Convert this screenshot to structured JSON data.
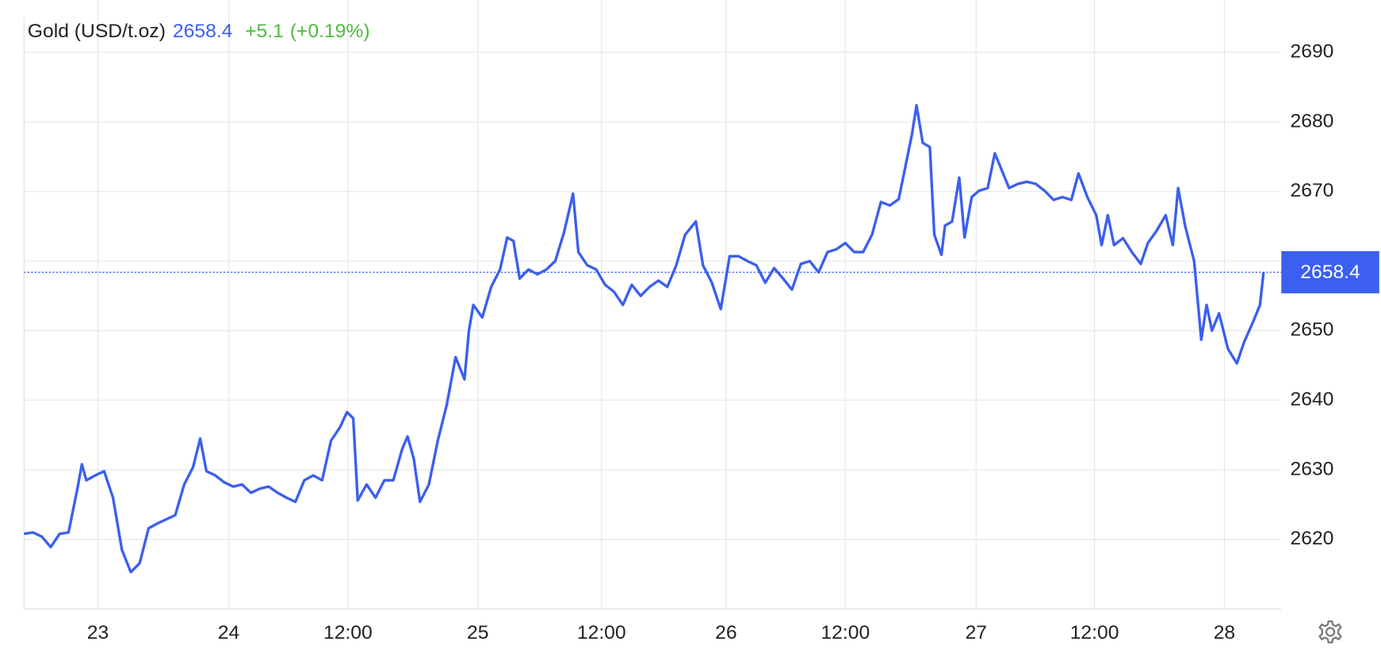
{
  "chart_data": {
    "type": "line",
    "title": "Gold (USD/t.oz)",
    "price": 2658.4,
    "change": {
      "value": 5.1,
      "label": "+5.1"
    },
    "change_pct": {
      "value": 0.19,
      "label": "(+0.19%)"
    },
    "color": "#3b5ff0",
    "grid": true,
    "x": [
      0,
      1,
      2,
      3,
      4,
      5,
      6,
      6.5,
      7,
      8,
      9,
      10,
      11,
      12,
      13,
      14,
      15,
      16,
      17,
      18,
      19,
      19.8,
      20.5,
      21.5,
      22.5,
      23.5,
      24.5,
      25.5,
      26.5,
      27.5,
      28.5,
      29.5,
      30.5,
      31.5,
      32.5,
      33.5,
      34.5,
      35.5,
      36.3,
      37,
      37.5,
      38.5,
      39.5,
      40.5,
      41.5,
      42.5,
      43.1,
      43.8,
      44.5,
      45.5,
      46.5,
      47.5,
      48.5,
      49.5,
      50,
      50.5,
      51.5,
      52.5,
      53.5,
      54.3,
      55,
      55.7,
      56.7,
      57.7,
      58.7,
      59.7,
      60.7,
      61.7,
      62.3,
      63.3,
      64.3,
      65.3,
      66.3,
      67.3,
      68.3,
      69.3,
      70.3,
      71.3,
      72.3,
      73.3,
      74.3,
      75.5,
      76.3,
      77.3,
      78.3,
      79.3,
      80.3,
      81.3,
      82.3,
      83.3,
      84.3,
      85.3,
      86.3,
      87.3,
      88.3,
      89.3,
      90.3,
      91.3,
      92.3,
      93.3,
      94.3,
      95.3,
      96.3,
      97.3,
      98.3,
      99.1,
      99.8,
      100.3,
      101,
      101.8,
      102.3,
      103.1,
      103.5,
      104.3,
      105.1,
      105.7,
      106.5,
      107.3,
      108.3,
      109.1,
      109.9,
      110.7,
      111.7,
      112.7,
      113.7,
      114.7,
      115.7,
      116.7,
      117.7,
      118.5,
      119.5,
      120.5,
      121.1,
      121.8,
      122.5,
      123.5,
      124.5,
      125.5,
      126.3,
      127.3,
      128.3,
      129.1,
      129.7,
      130.5,
      131.5,
      132.3,
      132.9,
      133.5,
      134.3,
      135.3,
      136.3,
      137.1,
      138.1,
      138.9,
      139.3
    ],
    "values": [
      2620.8,
      2621,
      2620.4,
      2618.9,
      2620.8,
      2621,
      2627.3,
      2630.8,
      2628.5,
      2629.2,
      2629.8,
      2626,
      2618.5,
      2615.3,
      2616.6,
      2621.6,
      2622.3,
      2622.9,
      2623.5,
      2627.9,
      2630.4,
      2634.5,
      2629.8,
      2629.2,
      2628.2,
      2627.6,
      2627.9,
      2626.7,
      2627.3,
      2627.6,
      2626.7,
      2626,
      2625.4,
      2628.5,
      2629.2,
      2628.5,
      2634.2,
      2636.1,
      2638.3,
      2637.4,
      2625.6,
      2627.9,
      2626,
      2628.5,
      2628.5,
      2633,
      2634.8,
      2631.6,
      2625.4,
      2627.9,
      2634.2,
      2639.3,
      2646.2,
      2643,
      2650,
      2653.7,
      2651.9,
      2656.3,
      2658.8,
      2663.4,
      2662.9,
      2657.5,
      2658.8,
      2658.1,
      2658.8,
      2660,
      2664.2,
      2669.7,
      2661.3,
      2659.4,
      2658.8,
      2656.6,
      2655.6,
      2653.7,
      2656.6,
      2655,
      2656.3,
      2657.2,
      2656.3,
      2659.4,
      2663.8,
      2665.7,
      2659.4,
      2656.9,
      2653.1,
      2660.7,
      2660.7,
      2660,
      2659.4,
      2656.9,
      2659,
      2657.5,
      2655.9,
      2659.6,
      2660,
      2658.4,
      2661.3,
      2661.7,
      2662.6,
      2661.3,
      2661.3,
      2663.8,
      2668.5,
      2668,
      2668.9,
      2673.9,
      2678.3,
      2682.4,
      2677,
      2676.4,
      2663.8,
      2660.9,
      2665.1,
      2665.7,
      2672,
      2663.4,
      2669.2,
      2670.1,
      2670.5,
      2675.5,
      2673,
      2670.5,
      2671.1,
      2671.4,
      2671.1,
      2670.1,
      2668.8,
      2669.2,
      2668.8,
      2672.6,
      2669.2,
      2666.6,
      2662.3,
      2666.6,
      2662.3,
      2663.3,
      2661.3,
      2659.6,
      2662.6,
      2664.4,
      2666.6,
      2662.3,
      2670.5,
      2665,
      2660,
      2648.7,
      2653.7,
      2650,
      2652.5,
      2647.4,
      2645.3,
      2648.3,
      2651.2,
      2653.7,
      2658.4
    ],
    "xlim": [
      0,
      141.3
    ],
    "xticks": [
      {
        "value": 8.3,
        "label": "23"
      },
      {
        "value": 23,
        "label": "24"
      },
      {
        "value": 36.4,
        "label": "12:00"
      },
      {
        "value": 51,
        "label": "25"
      },
      {
        "value": 64.9,
        "label": "12:00"
      },
      {
        "value": 78.9,
        "label": "26"
      },
      {
        "value": 92.3,
        "label": "12:00"
      },
      {
        "value": 107,
        "label": "27"
      },
      {
        "value": 120.3,
        "label": "12:00"
      },
      {
        "value": 134.9,
        "label": "28"
      }
    ],
    "ylim": [
      2610,
      2695
    ],
    "yticks": [
      2620,
      2630,
      2640,
      2650,
      2660,
      2670,
      2680,
      2690
    ]
  }
}
